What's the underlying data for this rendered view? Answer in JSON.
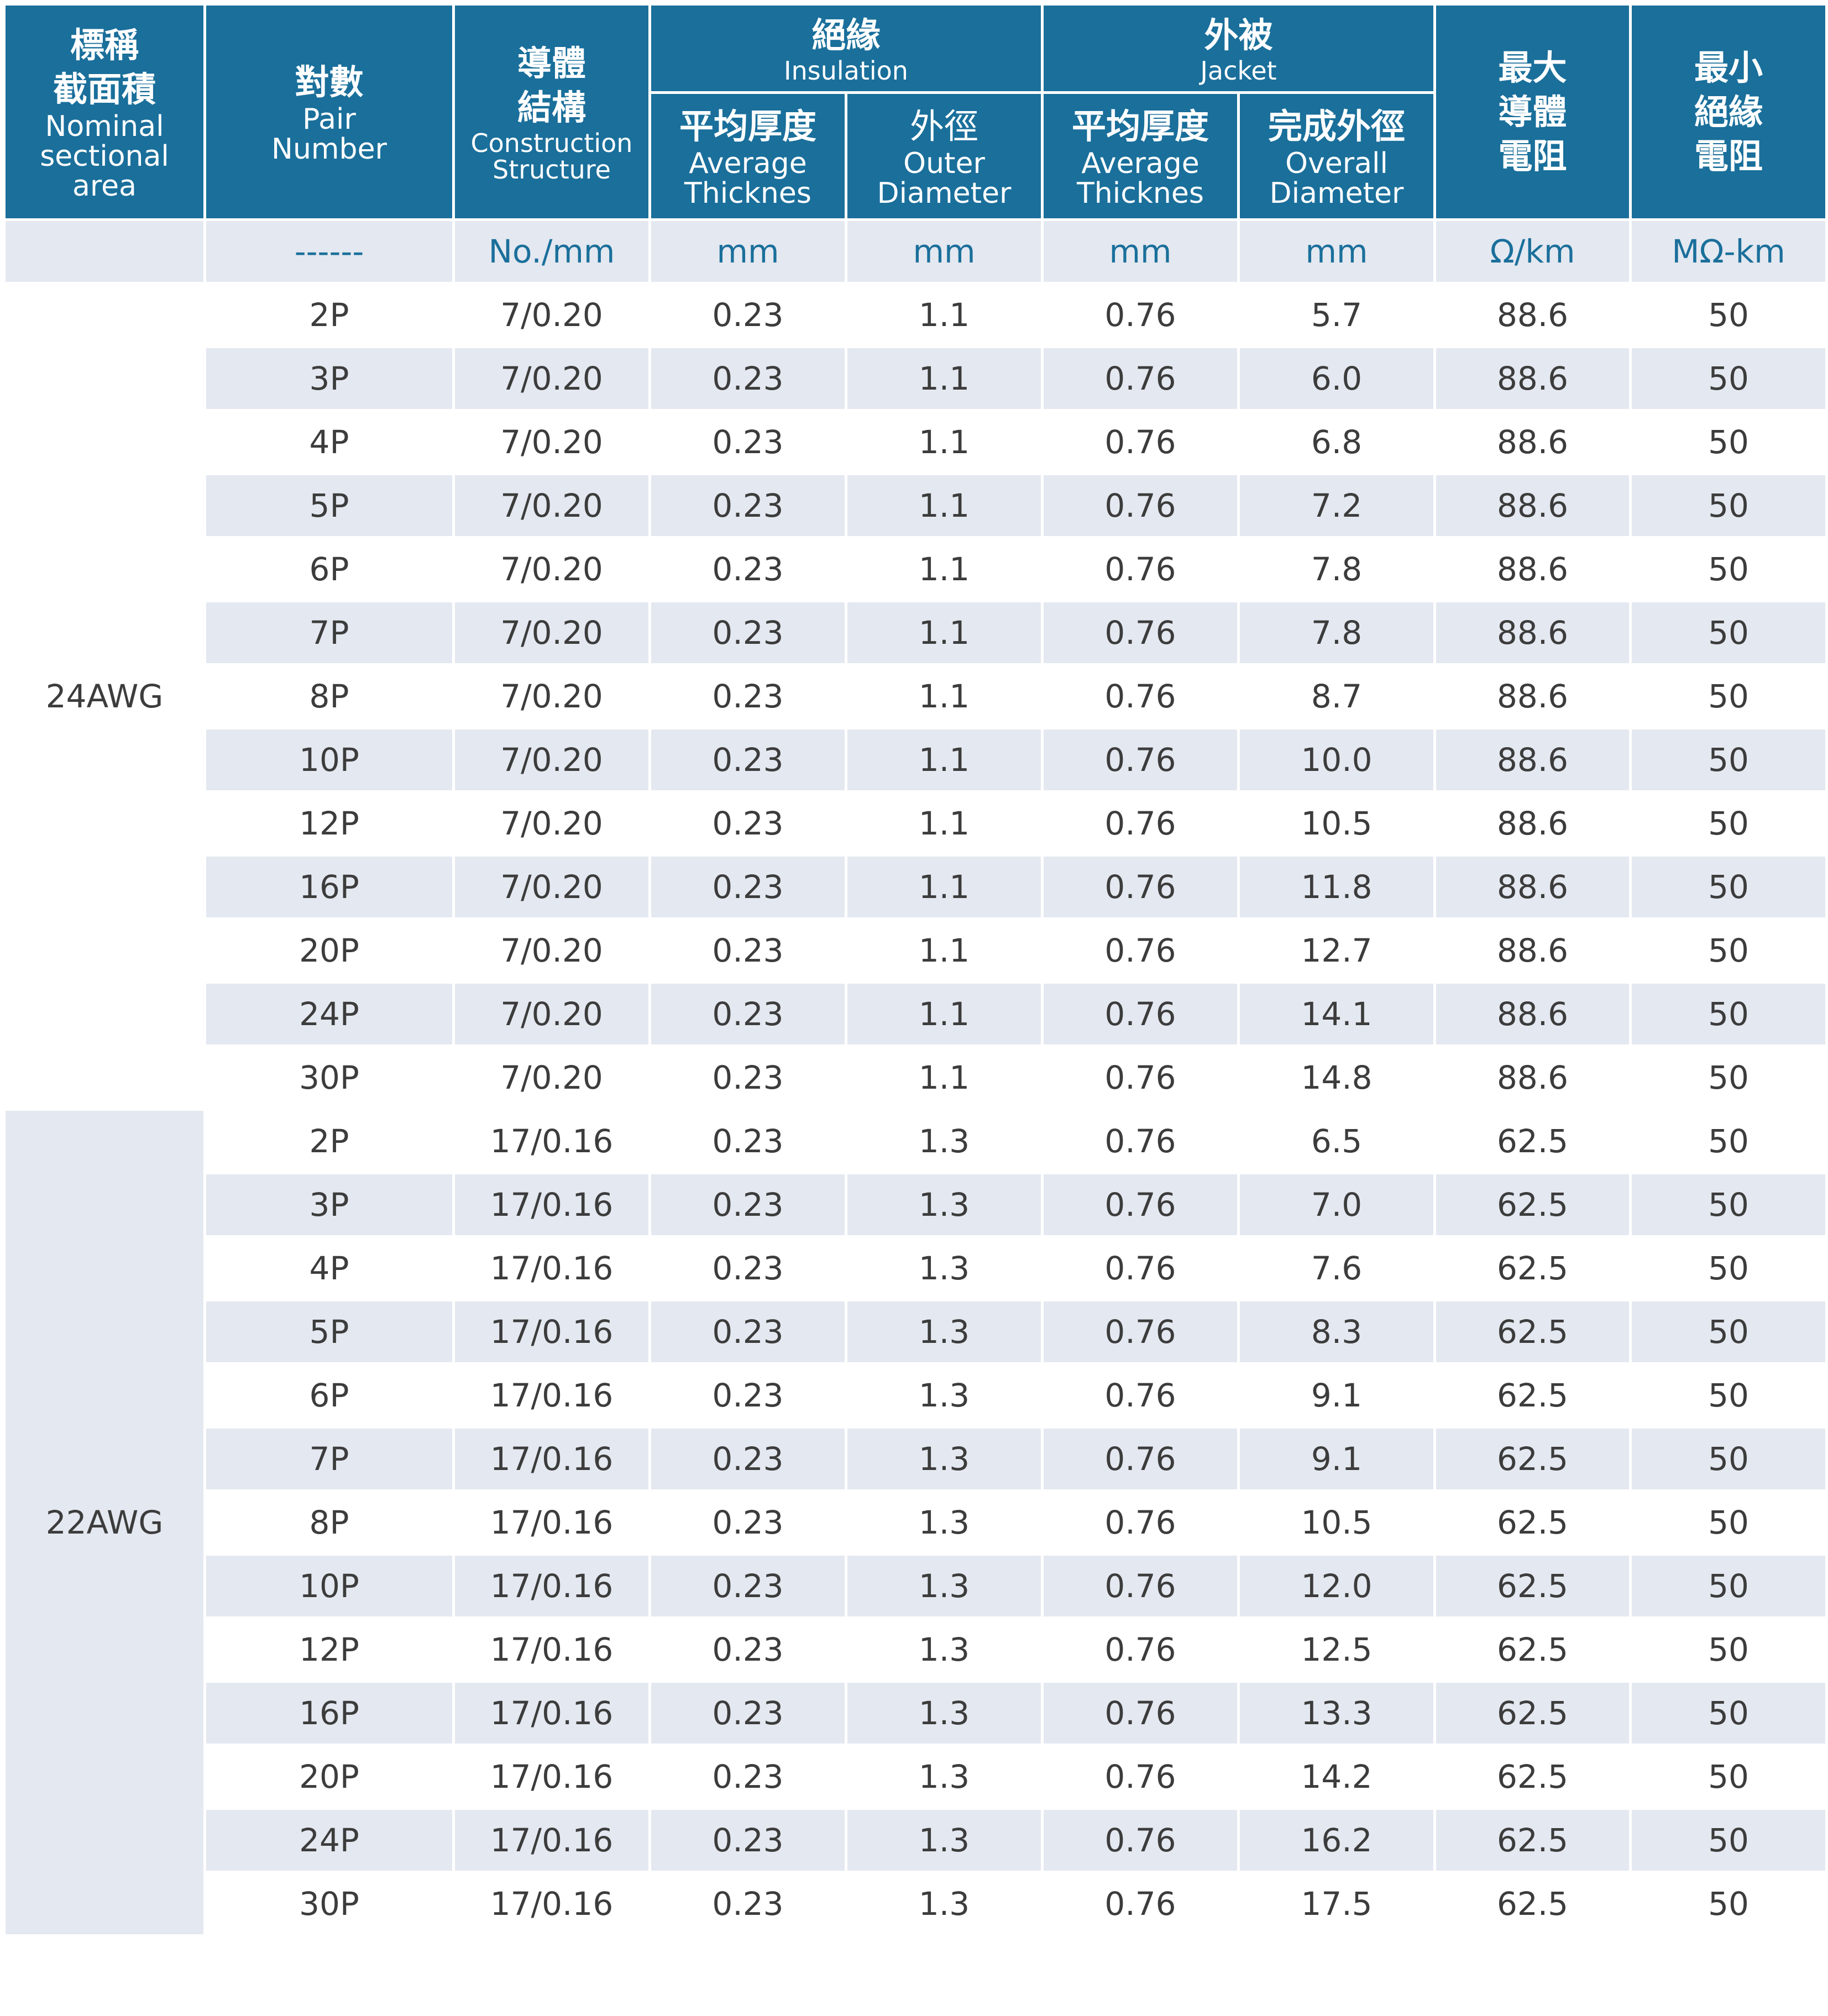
{
  "header": {
    "area": {
      "zh1": "標稱",
      "zh2": "截面積",
      "en1": "Nominal",
      "en2": "sectional",
      "en3": "area"
    },
    "pair": {
      "zh": "對數",
      "en1": "Pair",
      "en2": "Number"
    },
    "construction": {
      "zh1": "導體",
      "zh2": "結構",
      "en1": "Construction",
      "en2": "Structure"
    },
    "insulation": {
      "zh": "絕緣",
      "en": "Insulation"
    },
    "jacket": {
      "zh": "外被",
      "en": "Jacket"
    },
    "max_resistance": {
      "zh1": "最大",
      "zh2": "導體",
      "zh3": "電阻"
    },
    "min_insulation": {
      "zh1": "最小",
      "zh2": "絕緣",
      "zh3": "電阻"
    },
    "ins_thick": {
      "zh": "平均厚度",
      "en1": "Average",
      "en2": "Thicknes"
    },
    "ins_outer": {
      "zh": "外徑",
      "en1": "Outer",
      "en2": "Diameter"
    },
    "jac_thick": {
      "zh": "平均厚度",
      "en1": "Average",
      "en2": "Thicknes"
    },
    "jac_overall": {
      "zh": "完成外徑",
      "en1": "Overall",
      "en2": "Diameter"
    }
  },
  "units": [
    "",
    "------",
    "No./mm",
    "mm",
    "mm",
    "mm",
    "mm",
    "Ω/km",
    "MΩ-km"
  ],
  "groups": [
    {
      "area": "24AWG",
      "rows": [
        [
          "2P",
          "7/0.20",
          "0.23",
          "1.1",
          "0.76",
          "5.7",
          "88.6",
          "50"
        ],
        [
          "3P",
          "7/0.20",
          "0.23",
          "1.1",
          "0.76",
          "6.0",
          "88.6",
          "50"
        ],
        [
          "4P",
          "7/0.20",
          "0.23",
          "1.1",
          "0.76",
          "6.8",
          "88.6",
          "50"
        ],
        [
          "5P",
          "7/0.20",
          "0.23",
          "1.1",
          "0.76",
          "7.2",
          "88.6",
          "50"
        ],
        [
          "6P",
          "7/0.20",
          "0.23",
          "1.1",
          "0.76",
          "7.8",
          "88.6",
          "50"
        ],
        [
          "7P",
          "7/0.20",
          "0.23",
          "1.1",
          "0.76",
          "7.8",
          "88.6",
          "50"
        ],
        [
          "8P",
          "7/0.20",
          "0.23",
          "1.1",
          "0.76",
          "8.7",
          "88.6",
          "50"
        ],
        [
          "10P",
          "7/0.20",
          "0.23",
          "1.1",
          "0.76",
          "10.0",
          "88.6",
          "50"
        ],
        [
          "12P",
          "7/0.20",
          "0.23",
          "1.1",
          "0.76",
          "10.5",
          "88.6",
          "50"
        ],
        [
          "16P",
          "7/0.20",
          "0.23",
          "1.1",
          "0.76",
          "11.8",
          "88.6",
          "50"
        ],
        [
          "20P",
          "7/0.20",
          "0.23",
          "1.1",
          "0.76",
          "12.7",
          "88.6",
          "50"
        ],
        [
          "24P",
          "7/0.20",
          "0.23",
          "1.1",
          "0.76",
          "14.1",
          "88.6",
          "50"
        ],
        [
          "30P",
          "7/0.20",
          "0.23",
          "1.1",
          "0.76",
          "14.8",
          "88.6",
          "50"
        ]
      ]
    },
    {
      "area": "22AWG",
      "rows": [
        [
          "2P",
          "17/0.16",
          "0.23",
          "1.3",
          "0.76",
          "6.5",
          "62.5",
          "50"
        ],
        [
          "3P",
          "17/0.16",
          "0.23",
          "1.3",
          "0.76",
          "7.0",
          "62.5",
          "50"
        ],
        [
          "4P",
          "17/0.16",
          "0.23",
          "1.3",
          "0.76",
          "7.6",
          "62.5",
          "50"
        ],
        [
          "5P",
          "17/0.16",
          "0.23",
          "1.3",
          "0.76",
          "8.3",
          "62.5",
          "50"
        ],
        [
          "6P",
          "17/0.16",
          "0.23",
          "1.3",
          "0.76",
          "9.1",
          "62.5",
          "50"
        ],
        [
          "7P",
          "17/0.16",
          "0.23",
          "1.3",
          "0.76",
          "9.1",
          "62.5",
          "50"
        ],
        [
          "8P",
          "17/0.16",
          "0.23",
          "1.3",
          "0.76",
          "10.5",
          "62.5",
          "50"
        ],
        [
          "10P",
          "17/0.16",
          "0.23",
          "1.3",
          "0.76",
          "12.0",
          "62.5",
          "50"
        ],
        [
          "12P",
          "17/0.16",
          "0.23",
          "1.3",
          "0.76",
          "12.5",
          "62.5",
          "50"
        ],
        [
          "16P",
          "17/0.16",
          "0.23",
          "1.3",
          "0.76",
          "13.3",
          "62.5",
          "50"
        ],
        [
          "20P",
          "17/0.16",
          "0.23",
          "1.3",
          "0.76",
          "14.2",
          "62.5",
          "50"
        ],
        [
          "24P",
          "17/0.16",
          "0.23",
          "1.3",
          "0.76",
          "16.2",
          "62.5",
          "50"
        ],
        [
          "30P",
          "17/0.16",
          "0.23",
          "1.3",
          "0.76",
          "17.5",
          "62.5",
          "50"
        ]
      ]
    }
  ]
}
